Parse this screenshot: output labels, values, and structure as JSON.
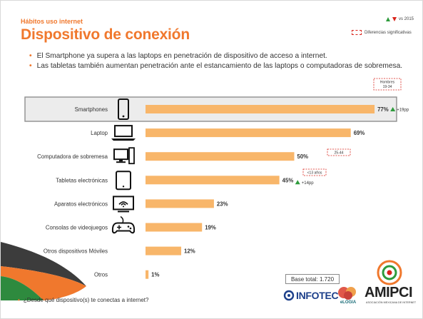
{
  "header": {
    "eyebrow": "Hábitos uso internet",
    "title": "Dispositivo de conexión"
  },
  "legend": {
    "vs_label": "vs 2015",
    "diff_label": "Diferencias significativas"
  },
  "bullets": [
    "El Smartphone ya supera a las laptops en penetración de dispositivo de acceso a internet.",
    "Las tabletas también aumentan penetración ante el estancamiento de las laptops o computadoras de sobremesa."
  ],
  "colors": {
    "accent": "#f0782d",
    "bar": "#f8b66a",
    "up": "#2e9b3c",
    "down": "#d9241b",
    "highlight_row": "#ececec"
  },
  "chart_data": {
    "type": "bar",
    "orientation": "horizontal",
    "categories": [
      "Smartphones",
      "Laptop",
      "Computadora de sobremesa",
      "Tabletas electrónicas",
      "Aparatos electrónicos",
      "Consolas de videojuegos",
      "Otros dispositivos Móviles",
      "Otros"
    ],
    "icons": [
      "smartphone-icon",
      "laptop-icon",
      "desktop-computer-icon",
      "tablet-icon",
      "smart-tv-icon",
      "gamepad-icon",
      "",
      ""
    ],
    "values": [
      77,
      69,
      50,
      45,
      23,
      19,
      12,
      1
    ],
    "value_labels": [
      "77%",
      "69%",
      "50%",
      "45%",
      "23%",
      "19%",
      "12%",
      "1%"
    ],
    "xlim": [
      0,
      100
    ],
    "highlighted_index": 0,
    "changes": [
      {
        "index": 0,
        "direction": "up",
        "label": "+19pp"
      },
      {
        "index": 3,
        "direction": "up",
        "label": "+14pp"
      }
    ],
    "significance_notes": [
      {
        "index": 0,
        "label": "Hombres 19-34"
      },
      {
        "index": 2,
        "label": "25-44"
      },
      {
        "index": 3,
        "label": "<13 años"
      }
    ]
  },
  "footer": {
    "base_label": "Base total: 1.720",
    "question": "¿Desde qué dispositivo(s) te conectas a internet?",
    "logos": {
      "infotec": "INFOTEC",
      "elogia": "eLOGIA",
      "amipci": "AMIPCI",
      "amipci_sub": "ASOCIACIÓN MEXICANA DE INTERNET"
    }
  }
}
